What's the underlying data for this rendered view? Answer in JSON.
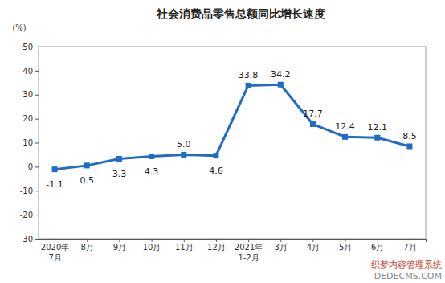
{
  "chart_data": {
    "type": "line",
    "title": "社会消费品零售总额同比增长速度",
    "y_label": "(%)",
    "categories": [
      "2020年\n7月",
      "8月",
      "9月",
      "10月",
      "11月",
      "12月",
      "2021年\n1-2月",
      "3月",
      "4月",
      "5月",
      "6月",
      "7月"
    ],
    "values": [
      -1.1,
      0.5,
      3.3,
      4.3,
      5.0,
      4.6,
      33.8,
      34.2,
      17.7,
      12.4,
      12.1,
      8.5
    ],
    "value_labels": [
      "-1.1",
      "0.5",
      "3.3",
      "4.3",
      "5.0",
      "4.6",
      "33.8",
      "34.2",
      "17.7",
      "12.4",
      "12.1",
      "8.5"
    ],
    "color": "#1f6cc4",
    "marker": "square",
    "line_style": "solid",
    "data_labels": true,
    "ylim": [
      -30,
      50
    ],
    "yticks": [
      -30,
      -20,
      -10,
      0,
      10,
      20,
      30,
      40,
      50
    ],
    "grid": false,
    "annotations": [
      "织梦内容管理系统",
      "DEDECMS.COM"
    ]
  }
}
